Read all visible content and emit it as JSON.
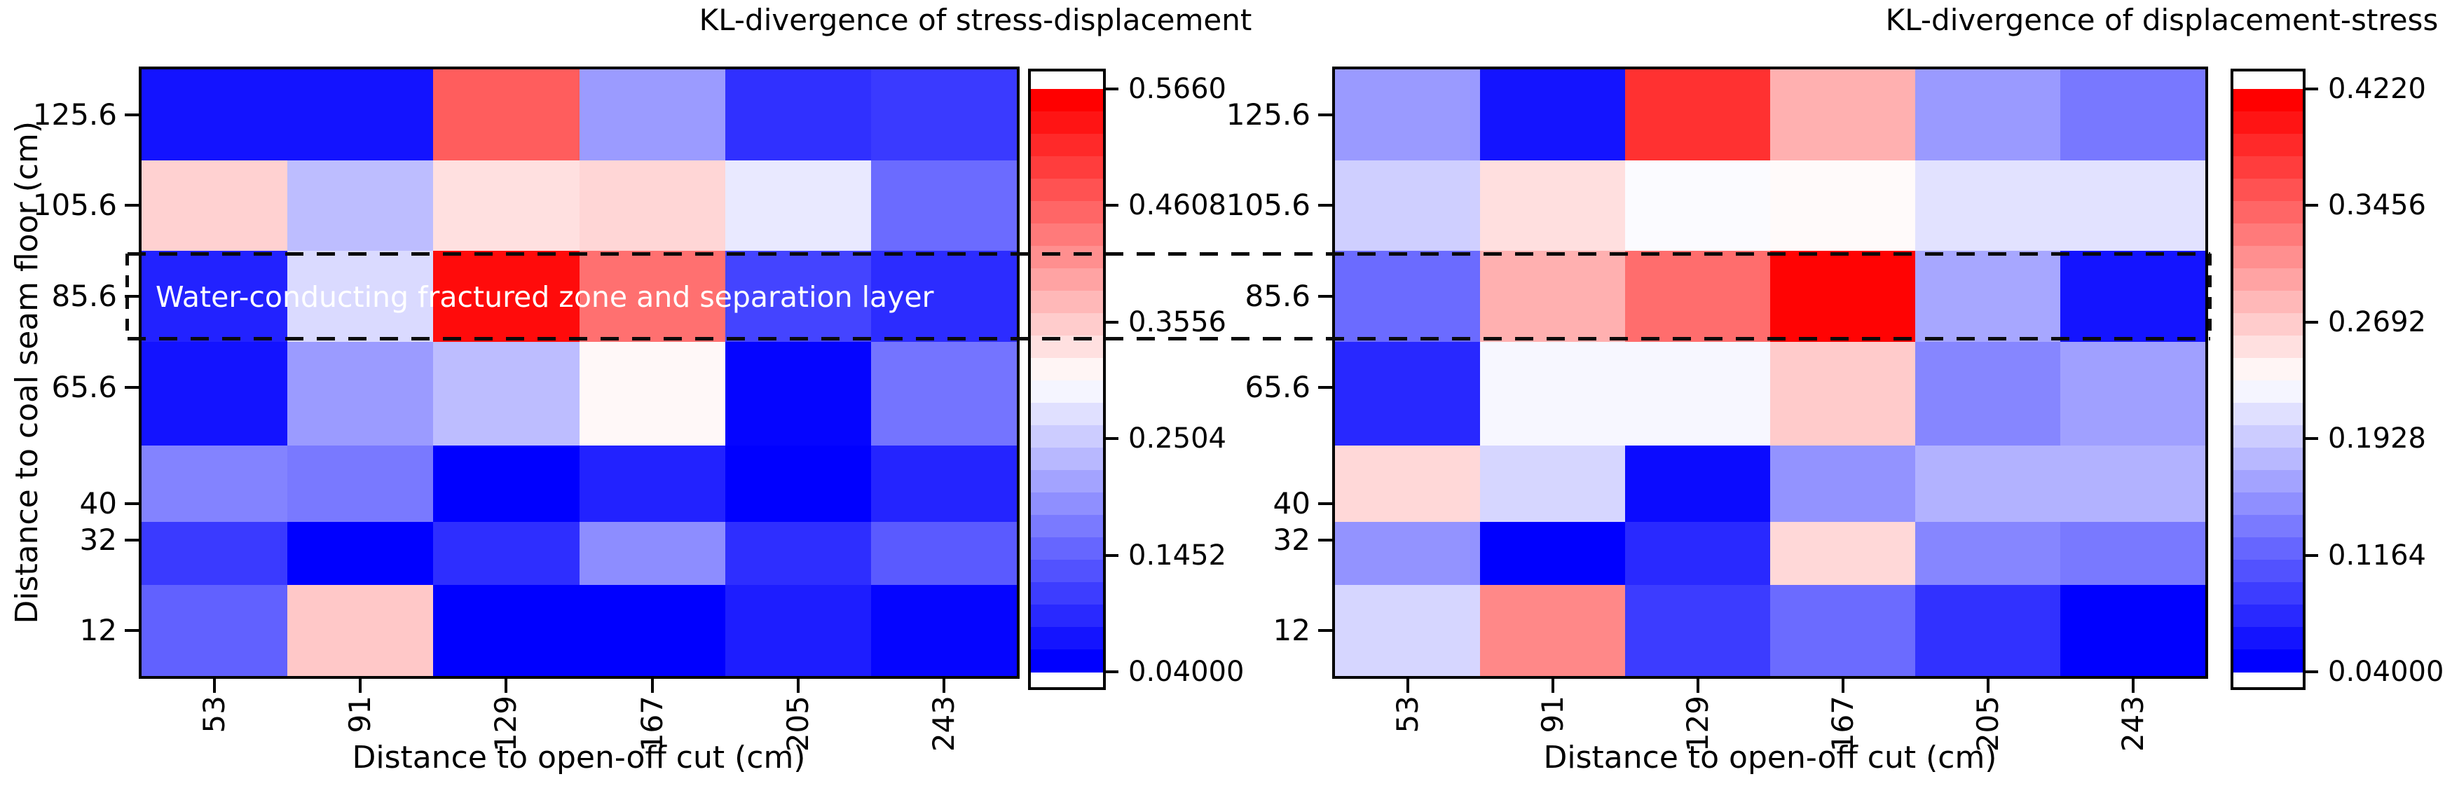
{
  "figure": {
    "background": "#ffffff",
    "annotation": {
      "label": "Water-conducting fractured zone and separation layer",
      "text_color": "#ffffff",
      "marks_row": "85.6"
    }
  },
  "colors": {
    "colormap_low": "#0000ff",
    "colormap_mid": "#ffffff",
    "colormap_high": "#ff0000",
    "frame": "#000000",
    "dashed_box": "#0a0a0a"
  },
  "chart_data": [
    {
      "type": "heatmap",
      "title": "KL-divergence of stress-displacement",
      "xlabel": "Distance to open-off cut (cm)",
      "ylabel": "Distance to coal seam floor (cm)",
      "x": [
        53,
        91,
        129,
        167,
        205,
        243
      ],
      "x_tick_labels": [
        "53",
        "91",
        "129",
        "167",
        "205",
        "243"
      ],
      "y": [
        125.6,
        105.6,
        85.6,
        65.6,
        40,
        32,
        12
      ],
      "y_tick_labels": [
        "125.6",
        "105.6",
        "85.6",
        "65.6",
        "40",
        "32",
        "12"
      ],
      "y_edges": [
        135.6,
        115.6,
        95.6,
        75.6,
        52.8,
        36,
        22,
        2
      ],
      "colormap": "blue-white-red",
      "vmin": 0.04,
      "vmax": 0.566,
      "colorbar_ticks": [
        "0.5660",
        "0.4608",
        "0.3556",
        "0.2504",
        "0.1452",
        "0.04000"
      ],
      "values": [
        [
          0.06,
          0.06,
          0.47,
          0.2,
          0.09,
          0.1
        ],
        [
          0.35,
          0.235,
          0.335,
          0.345,
          0.28,
          0.15
        ],
        [
          0.075,
          0.265,
          0.555,
          0.45,
          0.11,
          0.085
        ],
        [
          0.06,
          0.2,
          0.235,
          0.31,
          0.045,
          0.16
        ],
        [
          0.175,
          0.165,
          0.04,
          0.075,
          0.04,
          0.077
        ],
        [
          0.1,
          0.04,
          0.087,
          0.185,
          0.087,
          0.133
        ],
        [
          0.14,
          0.36,
          0.04,
          0.04,
          0.07,
          0.045
        ]
      ]
    },
    {
      "type": "heatmap",
      "title": "KL-divergence of displacement-stress",
      "xlabel": "Distance to open-off cut (cm)",
      "ylabel": "Distance to coal seam floor (cm)",
      "x": [
        53,
        91,
        129,
        167,
        205,
        243
      ],
      "x_tick_labels": [
        "53",
        "91",
        "129",
        "167",
        "205",
        "243"
      ],
      "y": [
        125.6,
        105.6,
        85.6,
        65.6,
        40,
        32,
        12
      ],
      "y_tick_labels": [
        "125.6",
        "105.6",
        "85.6",
        "65.6",
        "40",
        "32",
        "12"
      ],
      "y_edges": [
        135.6,
        115.6,
        95.6,
        75.6,
        52.8,
        36,
        22,
        2
      ],
      "colormap": "blue-white-red",
      "vmin": 0.04,
      "vmax": 0.422,
      "colorbar_ticks": [
        "0.4220",
        "0.3456",
        "0.2692",
        "0.1928",
        "0.1164",
        "0.04000"
      ],
      "values": [
        [
          0.155,
          0.055,
          0.385,
          0.29,
          0.155,
          0.13
        ],
        [
          0.195,
          0.255,
          0.228,
          0.235,
          0.209,
          0.209
        ],
        [
          0.12,
          0.29,
          0.34,
          0.42,
          0.165,
          0.055
        ],
        [
          0.07,
          0.225,
          0.225,
          0.27,
          0.14,
          0.16
        ],
        [
          0.26,
          0.2,
          0.048,
          0.15,
          0.173,
          0.173
        ],
        [
          0.15,
          0.04,
          0.071,
          0.26,
          0.14,
          0.131
        ],
        [
          0.2,
          0.32,
          0.085,
          0.12,
          0.077,
          0.04
        ]
      ]
    }
  ]
}
